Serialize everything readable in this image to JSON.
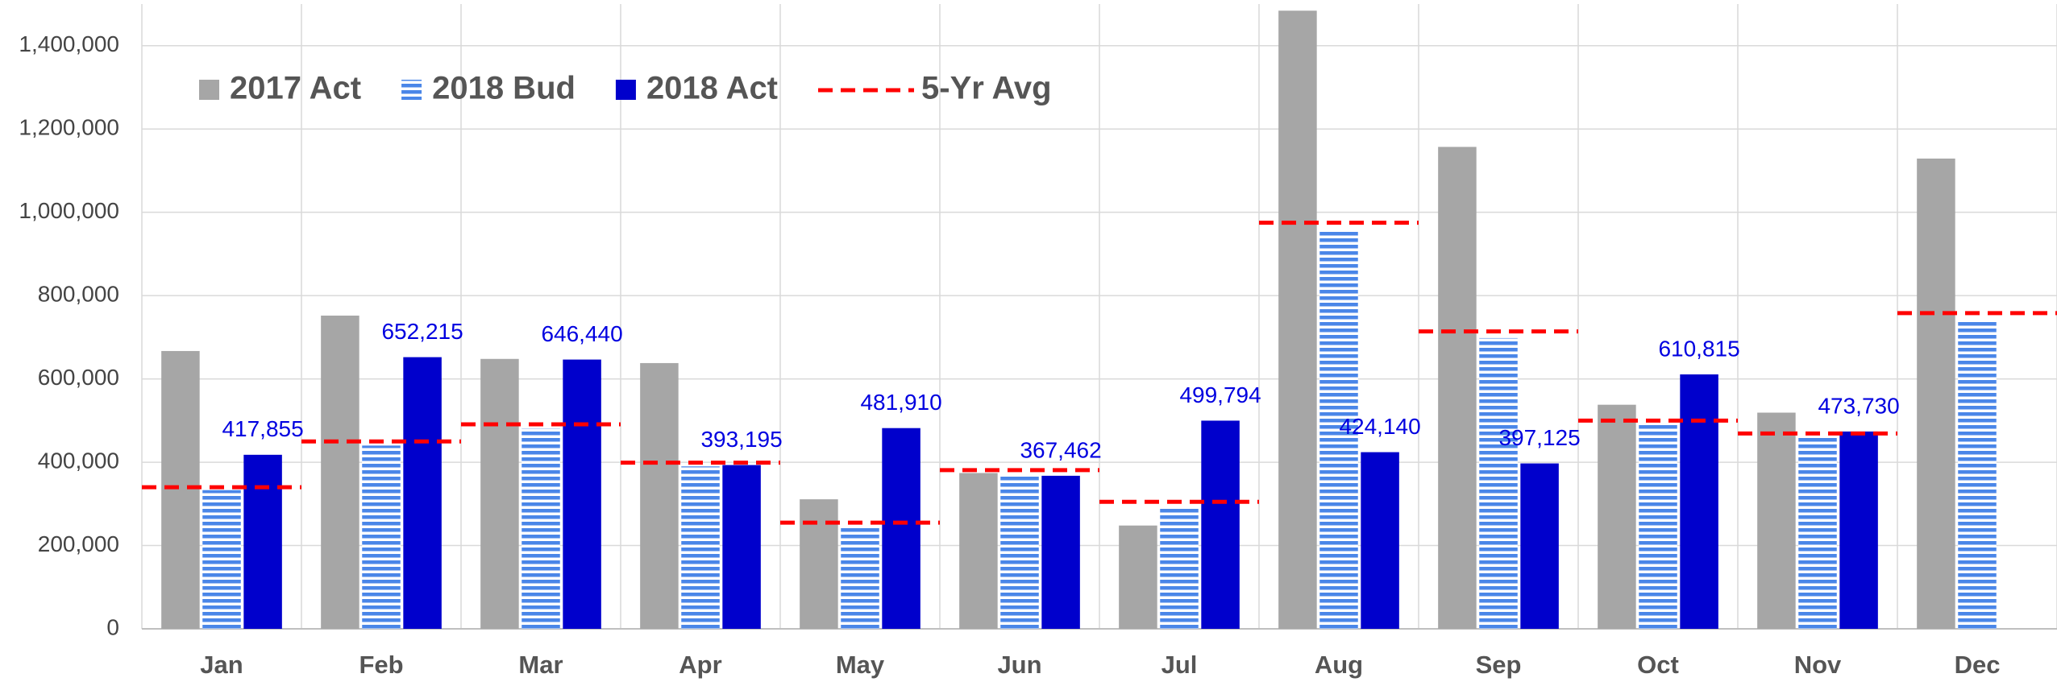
{
  "chart_data": {
    "type": "bar",
    "categories": [
      "Jan",
      "Feb",
      "Mar",
      "Apr",
      "May",
      "Jun",
      "Jul",
      "Aug",
      "Sep",
      "Oct",
      "Nov",
      "Dec"
    ],
    "series": [
      {
        "name": "2017 Act",
        "color": "#a6a6a6",
        "values": [
          667000,
          752000,
          648000,
          638000,
          311000,
          374000,
          248000,
          1484000,
          1157000,
          538000,
          519000,
          1129000
        ]
      },
      {
        "name": "2018 Bud",
        "color": "#4a86e8",
        "pattern": "horizontal-stripes",
        "values": [
          333000,
          440000,
          481000,
          390000,
          242000,
          368000,
          292000,
          956000,
          698000,
          494000,
          459000,
          742000
        ]
      },
      {
        "name": "2018 Act",
        "color": "#0000cc",
        "values": [
          417855,
          652215,
          646440,
          393195,
          481910,
          367462,
          499794,
          424140,
          397125,
          610815,
          473730,
          null
        ],
        "value_labels": [
          "417,855",
          "652,215",
          "646,440",
          "393,195",
          "481,910",
          "367,462",
          "499,794",
          "424,140",
          "397,125",
          "610,815",
          "473,730",
          null
        ]
      },
      {
        "name": "5-Yr Avg",
        "color": "#ff0000",
        "kind": "dash",
        "values": [
          340000,
          450000,
          491000,
          399000,
          255000,
          381000,
          305000,
          975000,
          714000,
          500000,
          469000,
          758000
        ]
      }
    ],
    "ylim": [
      0,
      1500000
    ],
    "yticks": [
      {
        "value": 0,
        "label": "0"
      },
      {
        "value": 200000,
        "label": "200,000"
      },
      {
        "value": 400000,
        "label": "400,000"
      },
      {
        "value": 600000,
        "label": "600,000"
      },
      {
        "value": 800000,
        "label": "800,000"
      },
      {
        "value": 1000000,
        "label": "1,000,000"
      },
      {
        "value": 1200000,
        "label": "1,200,000"
      },
      {
        "value": 1400000,
        "label": "1,400,000"
      }
    ],
    "grid": true,
    "legend": "upper left"
  }
}
